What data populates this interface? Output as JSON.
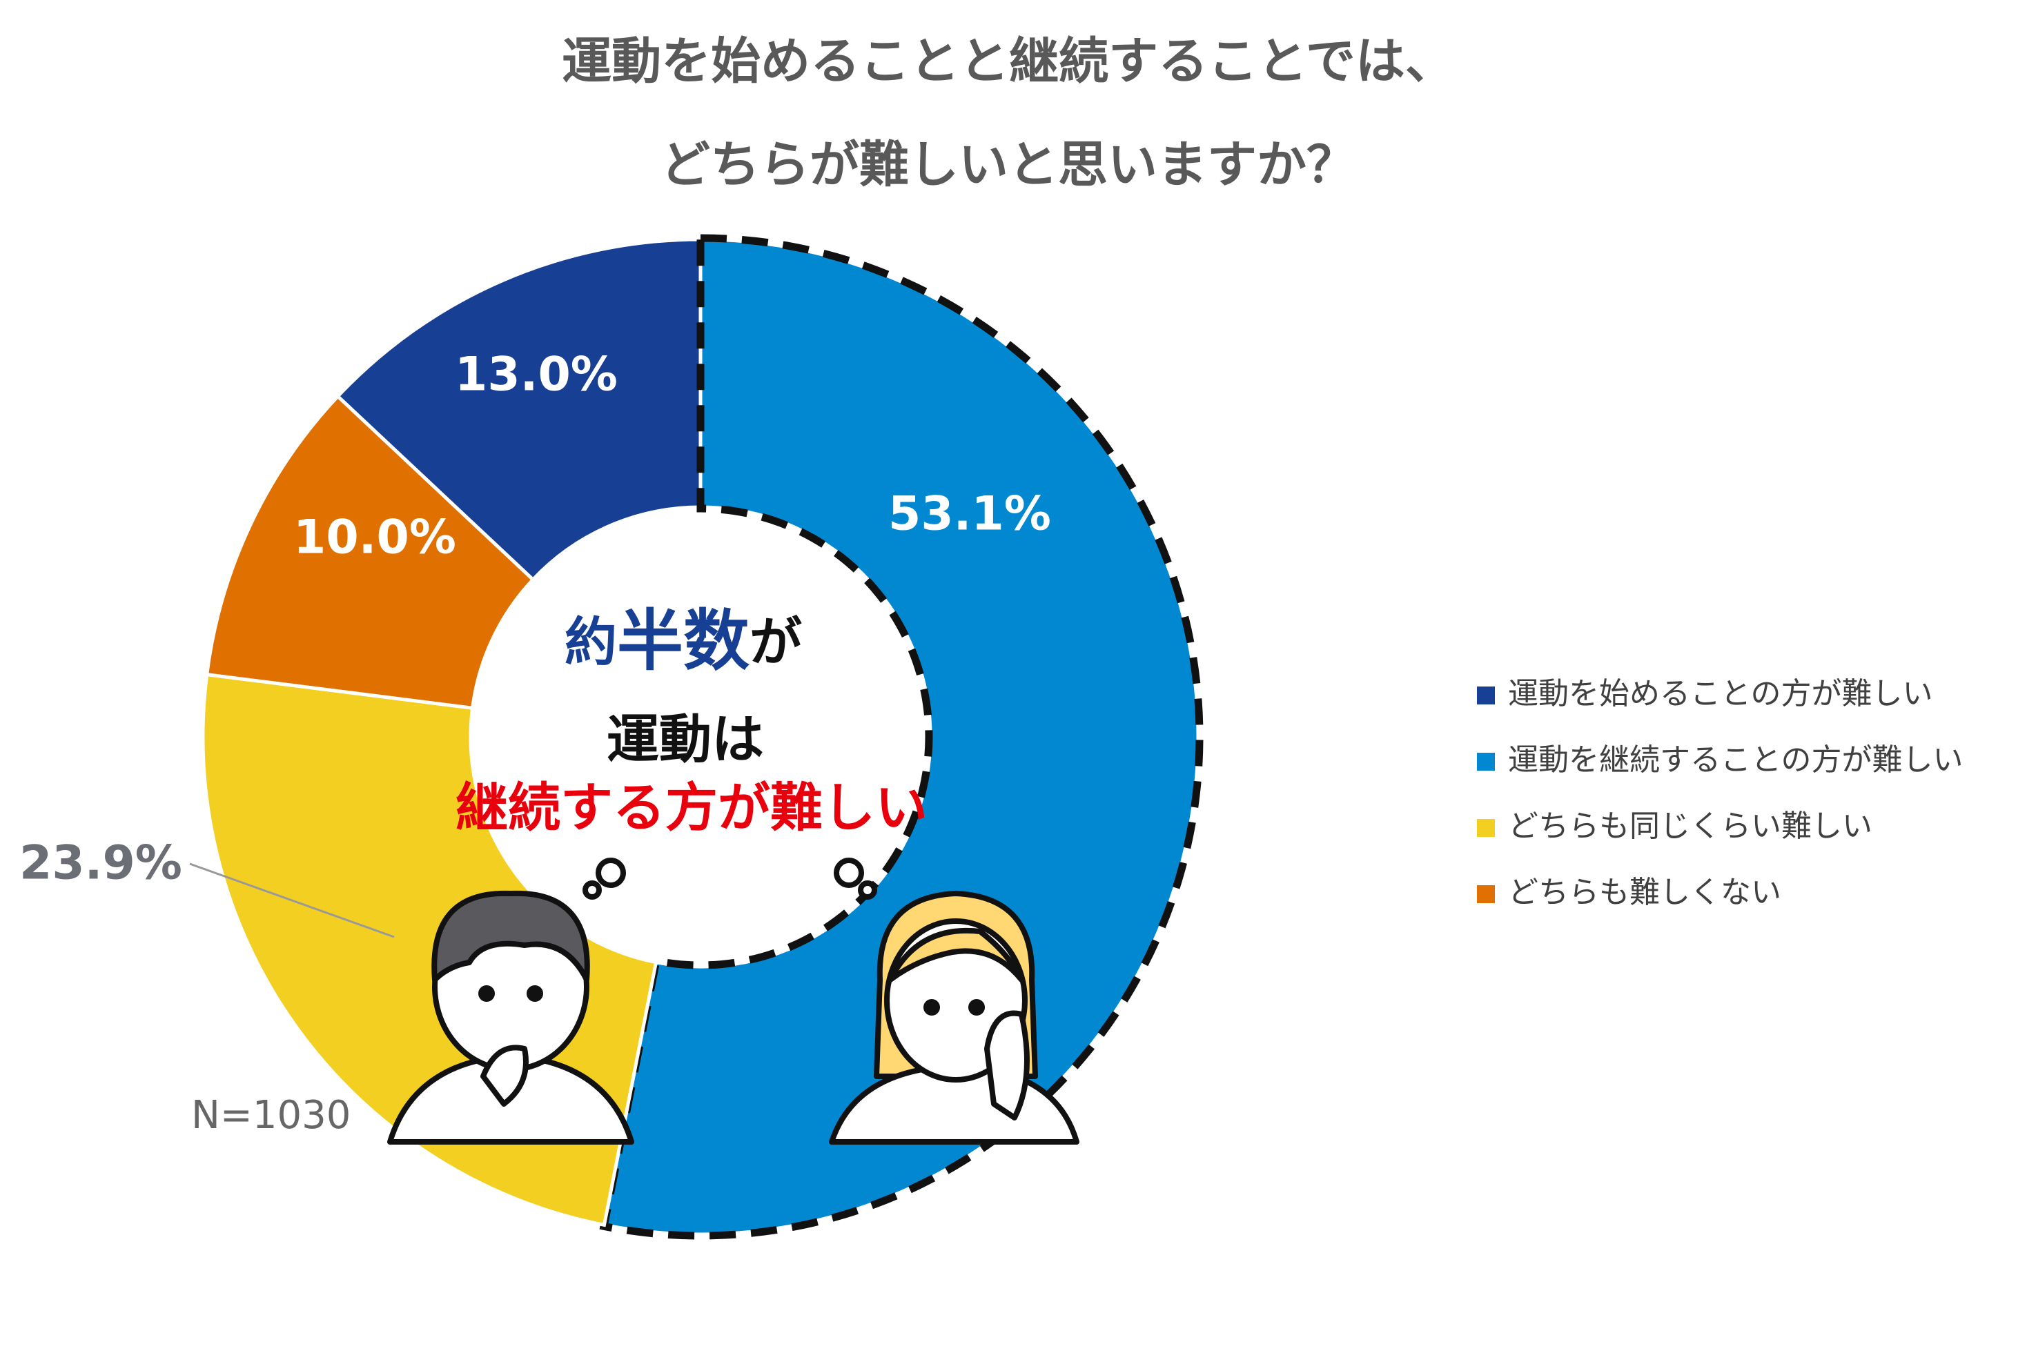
{
  "chart_data": {
    "type": "donut",
    "title": [
      "運動を始めることと継続することでは、",
      "どちらが難しいと思いますか？"
    ],
    "categories": [
      "運動を始めることの方が難しい",
      "運動を継続することの方が難しい",
      "どちらも同じくらい難しい",
      "どちらも難しくない"
    ],
    "values": [
      13.0,
      53.1,
      23.9,
      10.0
    ],
    "value_labels": [
      "13.0%",
      "53.1%",
      "23.9%",
      "10.0%"
    ],
    "colors": [
      "#173f94",
      "#0288d1",
      "#f3cf22",
      "#e07000"
    ],
    "annotations": [
      "約",
      "半数",
      "が",
      "運動は",
      "継続する方が難しい"
    ],
    "note": "N=1030",
    "legend": "right"
  }
}
